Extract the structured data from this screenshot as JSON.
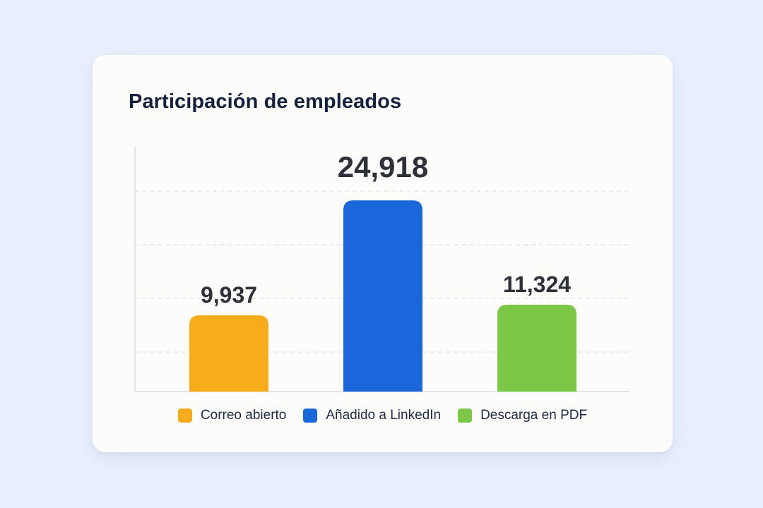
{
  "title": "Participación de empleados",
  "chart_data": {
    "type": "bar",
    "title": "Participación de empleados",
    "categories": [
      "Correo abierto",
      "Añadido a LinkedIn",
      "Descarga en PDF"
    ],
    "values": [
      9937,
      24918,
      11324
    ],
    "value_labels": [
      "9,937",
      "24,918",
      "11,324"
    ],
    "colors": [
      "#f9ac19",
      "#1967da",
      "#7cc846"
    ],
    "xlabel": "",
    "ylabel": "",
    "grid": true,
    "legend": "bottom"
  }
}
